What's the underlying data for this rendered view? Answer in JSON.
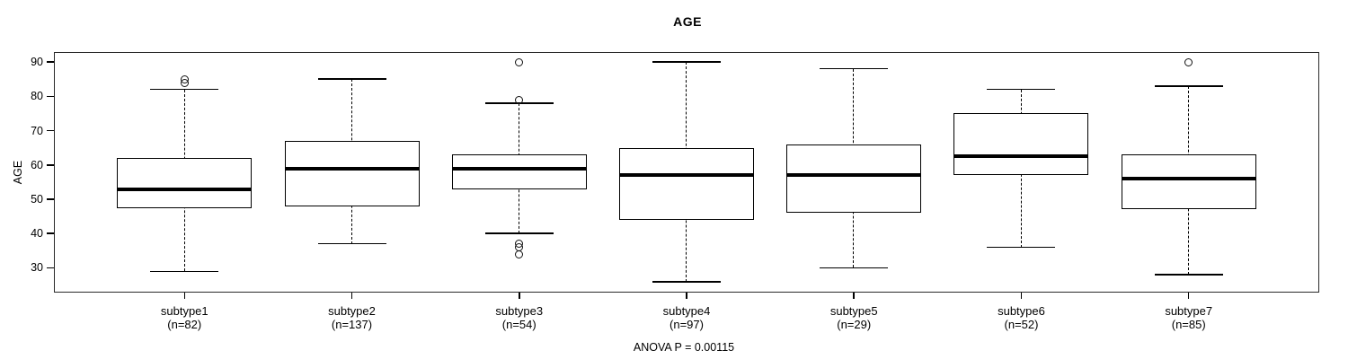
{
  "colors": {
    "line": "#000000",
    "background": "#ffffff"
  },
  "chart_data": {
    "type": "boxplot",
    "title": "AGE",
    "ylabel": "AGE",
    "xlabel": "",
    "annotation": "ANOVA P = 0.00115",
    "grid": false,
    "legend": null,
    "yticks": [
      30,
      40,
      50,
      60,
      70,
      80,
      90
    ],
    "ylim": [
      22.8,
      92.9
    ],
    "groups": [
      {
        "label": "subtype1",
        "sublabel": "(n=82)",
        "n": 82,
        "whisker_low": 29,
        "q1": 47.5,
        "median": 53,
        "q3": 62,
        "whisker_high": 82,
        "outliers": [
          84,
          85
        ]
      },
      {
        "label": "subtype2",
        "sublabel": "(n=137)",
        "n": 137,
        "whisker_low": 37,
        "q1": 48,
        "median": 59,
        "q3": 67,
        "whisker_high": 85,
        "outliers": []
      },
      {
        "label": "subtype3",
        "sublabel": "(n=54)",
        "n": 54,
        "whisker_low": 40,
        "q1": 53,
        "median": 59,
        "q3": 63,
        "whisker_high": 78,
        "outliers": [
          90,
          79,
          37,
          36,
          34
        ]
      },
      {
        "label": "subtype4",
        "sublabel": "(n=97)",
        "n": 97,
        "whisker_low": 26,
        "q1": 44,
        "median": 57,
        "q3": 65,
        "whisker_high": 90,
        "outliers": []
      },
      {
        "label": "subtype5",
        "sublabel": "(n=29)",
        "n": 29,
        "whisker_low": 30,
        "q1": 46,
        "median": 57,
        "q3": 66,
        "whisker_high": 88,
        "outliers": []
      },
      {
        "label": "subtype6",
        "sublabel": "(n=52)",
        "n": 52,
        "whisker_low": 36,
        "q1": 57,
        "median": 62.5,
        "q3": 75,
        "whisker_high": 82,
        "outliers": []
      },
      {
        "label": "subtype7",
        "sublabel": "(n=85)",
        "n": 85,
        "whisker_low": 28,
        "q1": 47,
        "median": 56,
        "q3": 63,
        "whisker_high": 83,
        "outliers": [
          90
        ]
      }
    ]
  }
}
